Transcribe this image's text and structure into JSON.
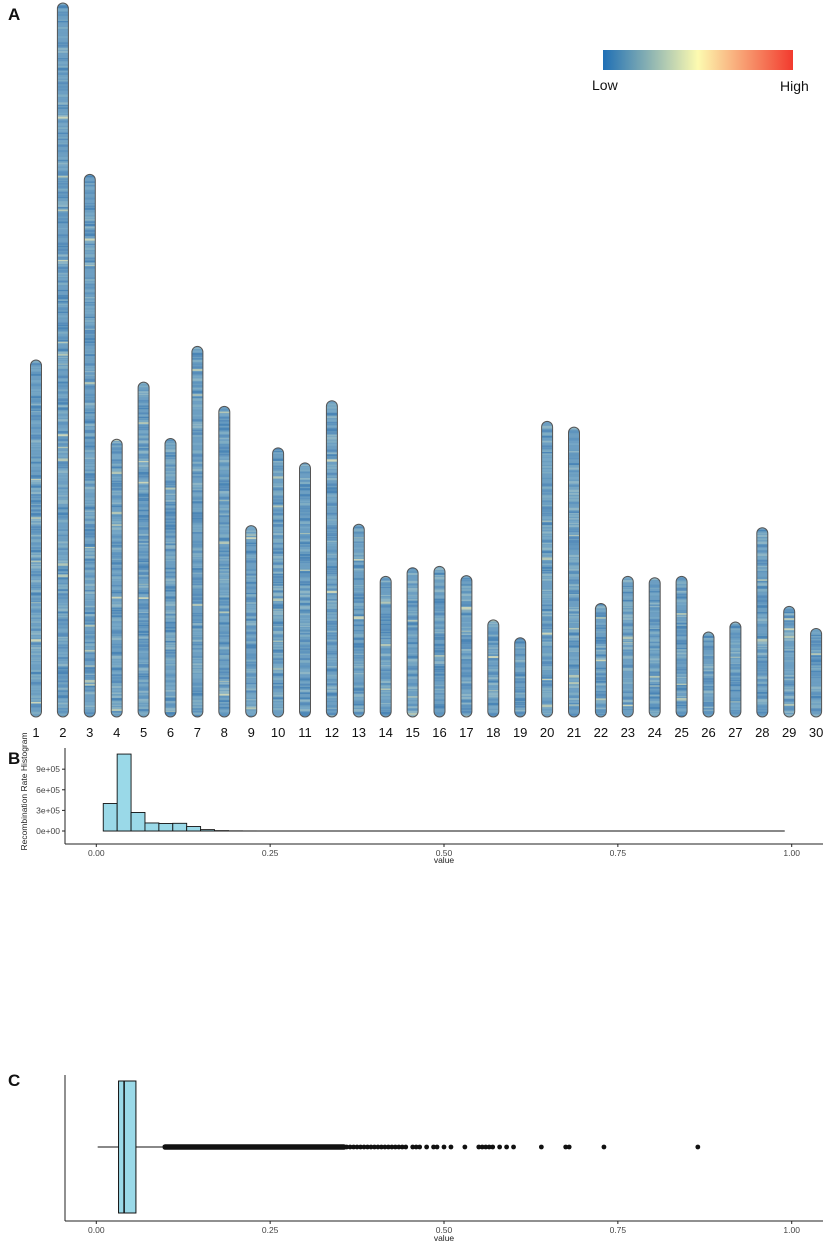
{
  "panels": {
    "a_label": "A",
    "b_label": "B",
    "c_label": "C"
  },
  "chart_data": [
    {
      "panel": "A",
      "type": "heatmap",
      "title": "",
      "legend": {
        "low_label": "Low",
        "high_label": "High",
        "colors": [
          "#2166ac",
          "#fffcb0",
          "#f03030"
        ],
        "placement": "top-right"
      },
      "base_color": "#6b9ec0",
      "outline_color": "#555555",
      "categories": [
        "1",
        "2",
        "3",
        "4",
        "5",
        "6",
        "7",
        "8",
        "9",
        "10",
        "11",
        "12",
        "13",
        "14",
        "15",
        "16",
        "17",
        "18",
        "19",
        "20",
        "21",
        "22",
        "23",
        "24",
        "25",
        "26",
        "27",
        "28",
        "29",
        "30"
      ],
      "lengths": [
        50.0,
        100.0,
        76.0,
        38.9,
        46.9,
        39.0,
        51.9,
        43.5,
        26.8,
        37.7,
        35.6,
        44.3,
        27.0,
        19.7,
        20.9,
        21.1,
        19.8,
        13.6,
        11.1,
        41.4,
        40.6,
        15.9,
        19.7,
        19.5,
        19.7,
        11.9,
        13.3,
        26.5,
        15.5,
        12.4
      ],
      "length_unit": "relative (chromosome 2 = 100)"
    },
    {
      "panel": "B",
      "type": "bar",
      "title": "",
      "xlabel": "value",
      "ylabel": "Recombination Rate Histogram",
      "xlim": [
        -0.045,
        1.045
      ],
      "ylim": [
        0,
        1150000
      ],
      "x_ticks": [
        "0.00",
        "0.25",
        "0.50",
        "0.75",
        "1.00"
      ],
      "x_tick_values": [
        0,
        0.25,
        0.5,
        0.75,
        1.0
      ],
      "y_ticks": [
        "0e+00",
        "3e+05",
        "6e+05",
        "9e+05"
      ],
      "y_tick_values": [
        0,
        300000,
        600000,
        900000
      ],
      "bin_width": 0.02,
      "bin_starts": [
        0.01,
        0.03,
        0.05,
        0.07,
        0.09,
        0.11,
        0.13,
        0.15,
        0.17,
        0.19,
        0.21,
        0.23
      ],
      "values": [
        400000,
        1120000,
        270000,
        117000,
        109000,
        112000,
        65000,
        20000,
        5000,
        2000,
        1000,
        500
      ],
      "tail_end": 0.99,
      "fill": "#9ad9e8",
      "stroke": "#111111"
    },
    {
      "panel": "C",
      "type": "scatter",
      "subtype": "boxplot",
      "xlabel": "value",
      "xlim": [
        -0.045,
        1.045
      ],
      "x_ticks": [
        "0.00",
        "0.25",
        "0.50",
        "0.75",
        "1.00"
      ],
      "x_tick_values": [
        0,
        0.25,
        0.5,
        0.75,
        1.0
      ],
      "whisker_min": 0.002,
      "q1": 0.032,
      "median": 0.04,
      "q3": 0.057,
      "whisker_max": 0.095,
      "outliers": [
        0.36,
        0.365,
        0.37,
        0.375,
        0.38,
        0.385,
        0.39,
        0.395,
        0.4,
        0.405,
        0.41,
        0.415,
        0.42,
        0.425,
        0.43,
        0.435,
        0.44,
        0.445,
        0.455,
        0.46,
        0.465,
        0.475,
        0.485,
        0.49,
        0.5,
        0.51,
        0.53,
        0.55,
        0.555,
        0.56,
        0.565,
        0.57,
        0.58,
        0.59,
        0.6,
        0.64,
        0.675,
        0.68,
        0.73,
        0.865
      ],
      "dense_outlier_range": [
        0.095,
        0.36
      ],
      "fill": "#9ad9e8",
      "stroke": "#111111"
    }
  ]
}
